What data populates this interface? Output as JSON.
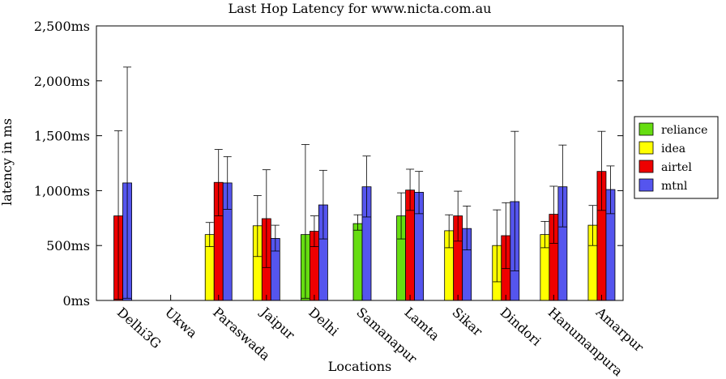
{
  "chart_data": {
    "type": "bar",
    "title": "Last Hop Latency for www.nicta.com.au",
    "xlabel": "Locations",
    "ylabel": "latency in ms",
    "ylim": [
      0,
      2500
    ],
    "yticks": [
      0,
      500,
      1000,
      1500,
      2000,
      2500
    ],
    "ytick_labels": [
      "0ms",
      "500ms",
      "1,000ms",
      "1,500ms",
      "2,000ms",
      "2,500ms"
    ],
    "legend_position": "right",
    "categories": [
      "Delhi3G",
      "Ukwa",
      "Paraswada",
      "Jaipur",
      "Delhi",
      "Samanapur",
      "Lamta",
      "Sikar",
      "Dindori",
      "Hanumanpura",
      "Amarpur"
    ],
    "series": [
      {
        "name": "reliance",
        "color": "#66dd11",
        "values": [
          null,
          null,
          null,
          null,
          600,
          700,
          770,
          null,
          null,
          null,
          null
        ],
        "err_low": [
          null,
          null,
          null,
          null,
          20,
          640,
          560,
          null,
          null,
          null,
          null
        ],
        "err_high": [
          null,
          null,
          null,
          null,
          1420,
          780,
          980,
          null,
          null,
          null,
          null
        ]
      },
      {
        "name": "idea",
        "color": "#ffff00",
        "values": [
          null,
          null,
          600,
          680,
          null,
          null,
          null,
          635,
          500,
          600,
          685
        ],
        "err_low": [
          null,
          null,
          490,
          400,
          null,
          null,
          null,
          480,
          170,
          480,
          500
        ],
        "err_high": [
          null,
          null,
          710,
          955,
          null,
          null,
          null,
          780,
          825,
          720,
          865
        ]
      },
      {
        "name": "airtel",
        "color": "#ee0000",
        "values": [
          770,
          null,
          1075,
          745,
          630,
          null,
          1005,
          770,
          590,
          785,
          1175
        ],
        "err_low": [
          10,
          null,
          770,
          300,
          490,
          null,
          820,
          540,
          290,
          520,
          820
        ],
        "err_high": [
          1545,
          null,
          1375,
          1190,
          770,
          null,
          1195,
          995,
          890,
          1040,
          1540
        ]
      },
      {
        "name": "mtnl",
        "color": "#5555ee",
        "values": [
          1070,
          null,
          1070,
          565,
          870,
          1035,
          985,
          655,
          900,
          1035,
          1010
        ],
        "err_low": [
          20,
          null,
          830,
          450,
          560,
          760,
          790,
          460,
          270,
          670,
          790
        ],
        "err_high": [
          2125,
          null,
          1310,
          685,
          1185,
          1315,
          1175,
          860,
          1540,
          1415,
          1225
        ]
      }
    ]
  }
}
